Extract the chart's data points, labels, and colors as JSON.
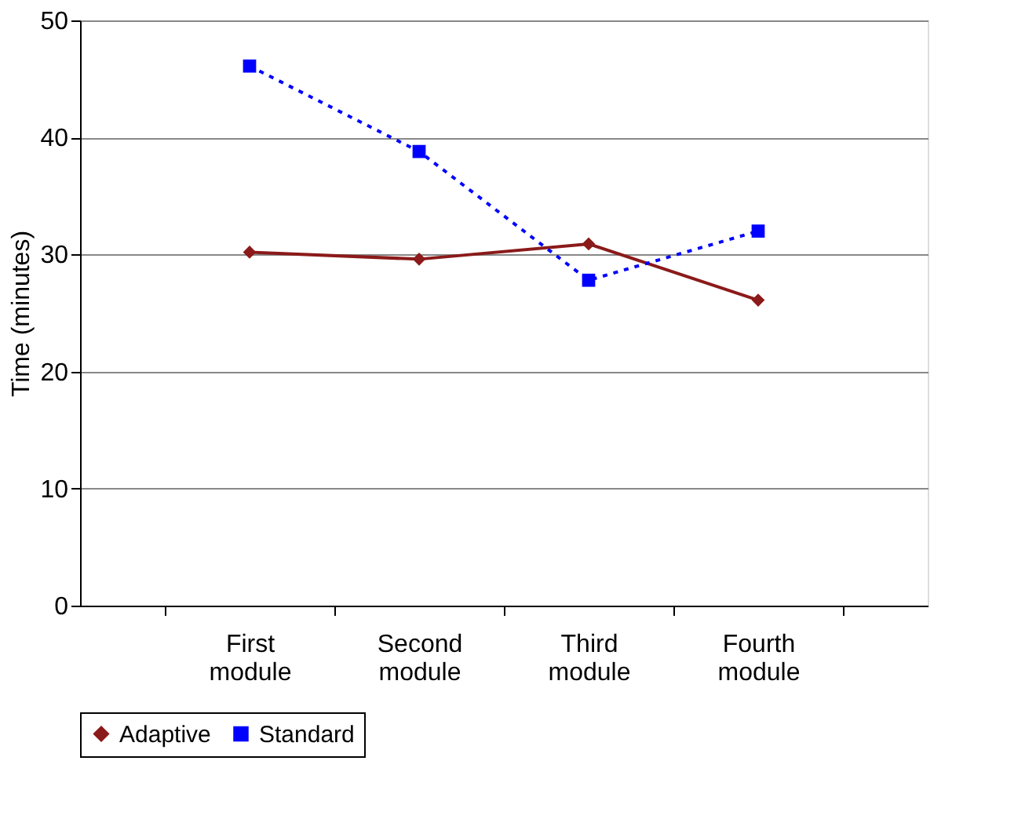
{
  "chart_data": {
    "type": "line",
    "ylabel": "Time (minutes)",
    "categories": [
      "First module",
      "Second module",
      "Third module",
      "Fourth module"
    ],
    "series": [
      {
        "name": "Adaptive",
        "color": "#8b1a1a",
        "values": [
          30.2,
          29.6,
          30.9,
          26.1
        ],
        "marker": "diamond",
        "line_style": "solid"
      },
      {
        "name": "Standard",
        "color": "#0000ff",
        "values": [
          46.1,
          38.8,
          27.8,
          32.0
        ],
        "marker": "square",
        "line_style": "dotted"
      }
    ],
    "ylim": [
      0,
      50
    ],
    "yticks": [
      0,
      10,
      20,
      30,
      40,
      50
    ],
    "grid": "y",
    "legend": "bottom"
  }
}
